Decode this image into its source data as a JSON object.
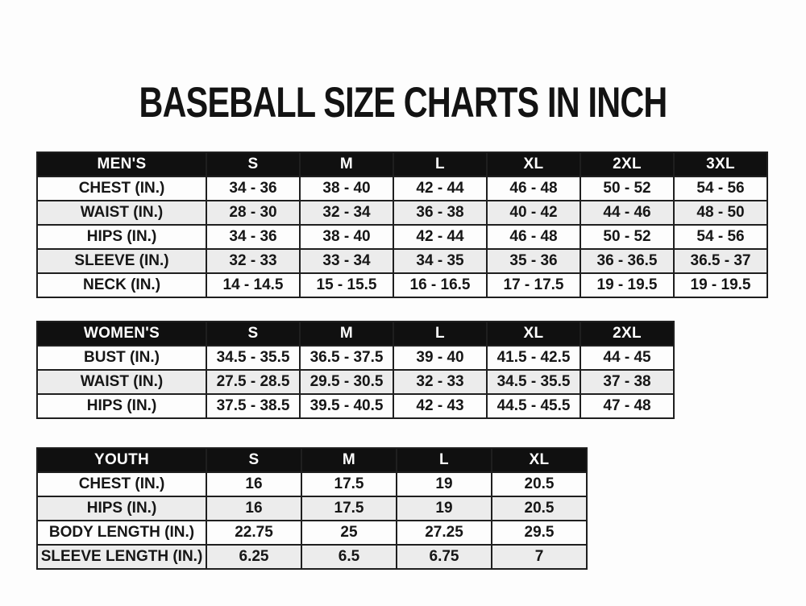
{
  "title": "BASEBALL SIZE CHARTS IN INCH",
  "colors": {
    "page_bg": "#fdfdfd",
    "header_bg": "#101010",
    "header_text": "#ffffff",
    "row_white": "#fdfdfd",
    "row_stripe": "#ececec",
    "border": "#1f1f1f",
    "text": "#161616"
  },
  "chart_data": [
    {
      "type": "table",
      "id": "mens",
      "group_label": "MEN'S",
      "size_columns": [
        "S",
        "M",
        "L",
        "XL",
        "2XL",
        "3XL"
      ],
      "rows": [
        {
          "label": "CHEST (IN.)",
          "values": [
            "34 - 36",
            "38 - 40",
            "42 - 44",
            "46 - 48",
            "50 - 52",
            "54 - 56"
          ]
        },
        {
          "label": "WAIST (IN.)",
          "values": [
            "28 - 30",
            "32 - 34",
            "36 - 38",
            "40 - 42",
            "44 - 46",
            "48 - 50"
          ]
        },
        {
          "label": "HIPS (IN.)",
          "values": [
            "34 - 36",
            "38 - 40",
            "42 - 44",
            "46 - 48",
            "50 - 52",
            "54 - 56"
          ]
        },
        {
          "label": "SLEEVE (IN.)",
          "values": [
            "32 - 33",
            "33 - 34",
            "34 - 35",
            "35 - 36",
            "36 - 36.5",
            "36.5 - 37"
          ]
        },
        {
          "label": "NECK (IN.)",
          "values": [
            "14 - 14.5",
            "15 - 15.5",
            "16 - 16.5",
            "17 - 17.5",
            "19 - 19.5",
            "19 - 19.5"
          ]
        }
      ]
    },
    {
      "type": "table",
      "id": "womens",
      "group_label": "WOMEN'S",
      "size_columns": [
        "S",
        "M",
        "L",
        "XL",
        "2XL"
      ],
      "rows": [
        {
          "label": "BUST (IN.)",
          "values": [
            "34.5 - 35.5",
            "36.5 - 37.5",
            "39 - 40",
            "41.5 - 42.5",
            "44 - 45"
          ]
        },
        {
          "label": "WAIST (IN.)",
          "values": [
            "27.5 - 28.5",
            "29.5 - 30.5",
            "32 - 33",
            "34.5 - 35.5",
            "37 - 38"
          ]
        },
        {
          "label": "HIPS (IN.)",
          "values": [
            "37.5 - 38.5",
            "39.5 - 40.5",
            "42 - 43",
            "44.5 - 45.5",
            "47 - 48"
          ]
        }
      ]
    },
    {
      "type": "table",
      "id": "youth",
      "group_label": "YOUTH",
      "size_columns": [
        "S",
        "M",
        "L",
        "XL"
      ],
      "rows": [
        {
          "label": "CHEST (IN.)",
          "values": [
            "16",
            "17.5",
            "19",
            "20.5"
          ]
        },
        {
          "label": "HIPS (IN.)",
          "values": [
            "16",
            "17.5",
            "19",
            "20.5"
          ]
        },
        {
          "label": "BODY LENGTH (IN.)",
          "values": [
            "22.75",
            "25",
            "27.25",
            "29.5"
          ]
        },
        {
          "label": "SLEEVE LENGTH (IN.)",
          "values": [
            "6.25",
            "6.5",
            "6.75",
            "7"
          ]
        }
      ]
    }
  ]
}
